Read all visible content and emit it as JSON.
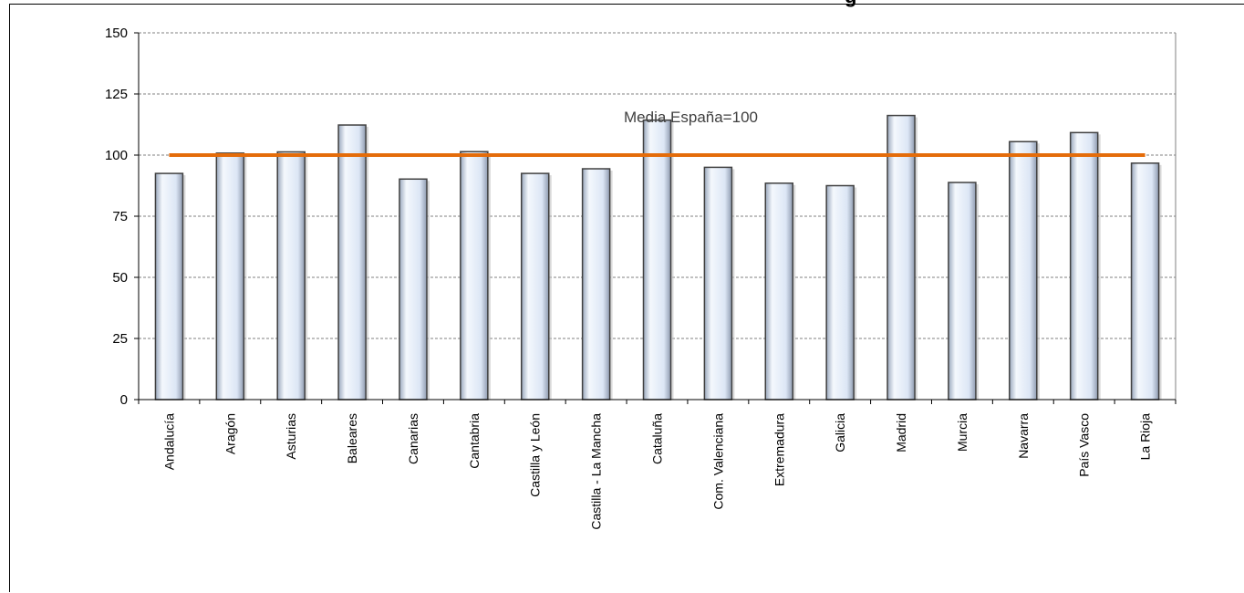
{
  "chart_data": {
    "type": "bar",
    "title_fragment": "g",
    "categories": [
      "Andalucía",
      "Aragón",
      "Asturias",
      "Baleares",
      "Canarias",
      "Cantabria",
      "Castilla y León",
      "Castilla - La Mancha",
      "Cataluña",
      "Com. Valenciana",
      "Extremadura",
      "Galicia",
      "Madrid",
      "Murcia",
      "Navarra",
      "País Vasco",
      "La Rioja"
    ],
    "values": [
      92.5,
      100.8,
      101.3,
      112.3,
      90.2,
      101.4,
      92.5,
      94.4,
      114.3,
      95.0,
      88.5,
      87.5,
      116.2,
      88.8,
      105.5,
      109.2,
      96.7
    ],
    "ylim": [
      0,
      150
    ],
    "yticks": [
      0,
      25,
      50,
      75,
      100,
      125,
      150
    ],
    "grid": true,
    "reference_line": {
      "value": 100,
      "label": "Media España=100",
      "color": "#E46C0A"
    },
    "bar_color": "#DCE6F5",
    "bar_edge_color": "#404040"
  }
}
